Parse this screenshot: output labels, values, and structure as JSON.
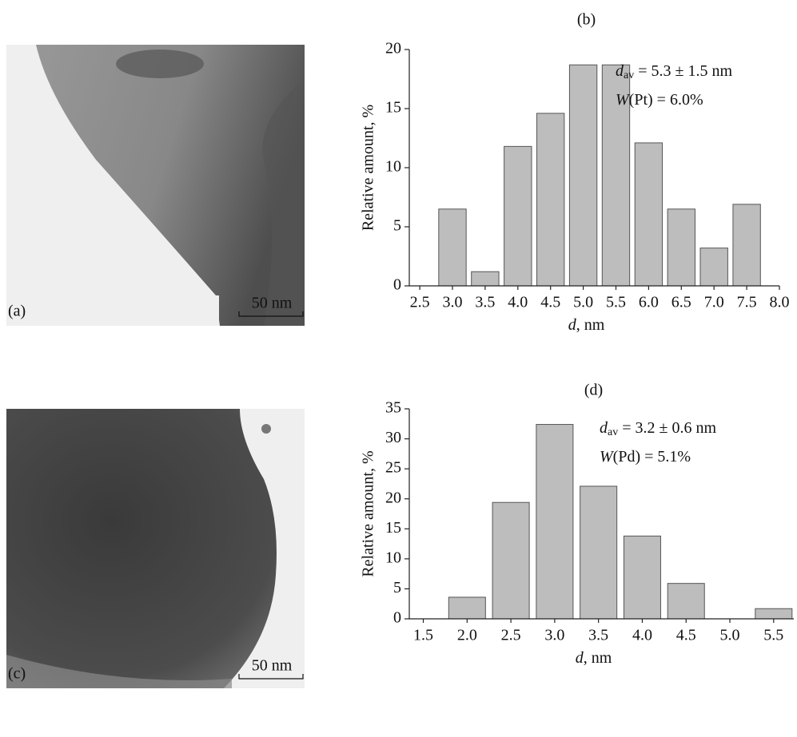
{
  "images": [
    {
      "label": "(a)",
      "scale_bar": "50 nm"
    },
    {
      "label": "(c)",
      "scale_bar": "50 nm"
    }
  ],
  "chart_data": [
    {
      "type": "bar",
      "title": "(b)",
      "color": "#bdbdbd",
      "x": [
        3.0,
        3.5,
        4.0,
        4.5,
        5.0,
        5.5,
        6.0,
        6.5,
        7.0,
        7.5
      ],
      "values": [
        6.5,
        1.2,
        11.8,
        14.6,
        18.7,
        18.7,
        12.1,
        6.5,
        3.2,
        6.9
      ],
      "xlim": [
        2.34,
        8.0
      ],
      "xticks": [
        {
          "value": 2.5,
          "label": "2.5"
        },
        {
          "value": 3.0,
          "label": "3.0"
        },
        {
          "value": 3.5,
          "label": "3.5"
        },
        {
          "value": 4.0,
          "label": "4.0"
        },
        {
          "value": 4.5,
          "label": "4.5"
        },
        {
          "value": 5.0,
          "label": "5.0"
        },
        {
          "value": 5.5,
          "label": "5.5"
        },
        {
          "value": 6.0,
          "label": "6.0"
        },
        {
          "value": 6.5,
          "label": "6.5"
        },
        {
          "value": 7.0,
          "label": "7.0"
        },
        {
          "value": 7.5,
          "label": "7.5"
        },
        {
          "value": 8.0,
          "label": "8.0"
        }
      ],
      "ylim": [
        0,
        20
      ],
      "yticks": [
        0,
        5,
        10,
        15,
        20
      ],
      "y_label": "Relative amount, %",
      "x_label": {
        "italic": "d",
        "text": ", nm"
      },
      "annotations": [
        {
          "italic": "d",
          "sub": "av",
          "text": " = 5.3 ± 1.5 nm"
        },
        {
          "italic": "W",
          "text": "(Pt) = 6.0%"
        }
      ]
    },
    {
      "type": "bar",
      "title": "(d)",
      "color": "#bdbdbd",
      "x": [
        2.0,
        2.5,
        3.0,
        3.5,
        4.0,
        4.5,
        5.0,
        5.5
      ],
      "values": [
        3.6,
        19.4,
        32.4,
        22.1,
        13.8,
        5.9,
        0,
        1.7
      ],
      "xlim": [
        1.34,
        5.73
      ],
      "xticks": [
        {
          "value": 1.5,
          "label": "1.5"
        },
        {
          "value": 2.0,
          "label": "2.0"
        },
        {
          "value": 2.5,
          "label": "2.5"
        },
        {
          "value": 3.0,
          "label": "3.0"
        },
        {
          "value": 3.5,
          "label": "3.5"
        },
        {
          "value": 4.0,
          "label": "4.0"
        },
        {
          "value": 4.5,
          "label": "4.5"
        },
        {
          "value": 5.0,
          "label": "5.0"
        },
        {
          "value": 5.5,
          "label": "5.5"
        }
      ],
      "ylim": [
        0,
        35
      ],
      "yticks": [
        0,
        5,
        10,
        15,
        20,
        25,
        30,
        35
      ],
      "y_label": "Relative amount, %",
      "x_label": {
        "italic": "d",
        "text": ", nm"
      },
      "annotations": [
        {
          "italic": "d",
          "sub": "av",
          "text": " = 3.2 ± 0.6 nm"
        },
        {
          "italic": "W",
          "text": "(Pd) = 5.1%"
        }
      ]
    }
  ]
}
